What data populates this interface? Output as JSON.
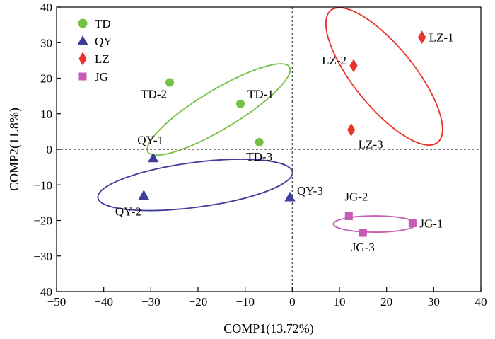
{
  "chart_data": {
    "type": "scatter",
    "xlabel": "COMP1(13.72%)",
    "ylabel": "COMP2(11.8%)",
    "xlim": [
      -50,
      40
    ],
    "ylim": [
      -40,
      40
    ],
    "xticks": [
      -50,
      -40,
      -30,
      -20,
      -10,
      0,
      10,
      20,
      30,
      40
    ],
    "yticks": [
      -40,
      -30,
      -20,
      -10,
      0,
      10,
      20,
      30,
      40
    ],
    "reference_lines": {
      "x": 0,
      "y": 0,
      "style": "dotted"
    },
    "legend": {
      "placement": "top-left"
    },
    "series": [
      {
        "name": "TD",
        "marker": "circle",
        "color": "#76c043",
        "points": [
          {
            "label": "TD-1",
            "x": -11,
            "y": 12.8
          },
          {
            "label": "TD-2",
            "x": -26,
            "y": 18.8
          },
          {
            "label": "TD-3",
            "x": -7,
            "y": 2
          }
        ],
        "ellipse": {
          "cx": -15.6,
          "cy": 11.2,
          "rx": 17.5,
          "ry": 5.5,
          "angle_deg": -31
        }
      },
      {
        "name": "QY",
        "marker": "triangle",
        "color": "#3f3d99",
        "points": [
          {
            "label": "QY-1",
            "x": -29.5,
            "y": -2.5
          },
          {
            "label": "QY-2",
            "x": -31.5,
            "y": -13
          },
          {
            "label": "QY-3",
            "x": -0.5,
            "y": -13.5
          }
        ],
        "ellipse": {
          "cx": -20.6,
          "cy": -10,
          "rx": 20.8,
          "ry": 6.3,
          "angle_deg": -7.5
        }
      },
      {
        "name": "LZ",
        "marker": "diamond",
        "color": "#e8322a",
        "points": [
          {
            "label": "LZ-1",
            "x": 27.5,
            "y": 31.5
          },
          {
            "label": "LZ-2",
            "x": 13,
            "y": 23.5
          },
          {
            "label": "LZ-3",
            "x": 12.5,
            "y": 5.5
          }
        ],
        "ellipse": {
          "cx": 19.5,
          "cy": 20.5,
          "rx": 18,
          "ry": 8.5,
          "angle_deg": 51
        }
      },
      {
        "name": "JG",
        "marker": "square",
        "color": "#c75bb4",
        "points": [
          {
            "label": "JG-1",
            "x": 25.5,
            "y": -20.8
          },
          {
            "label": "JG-2",
            "x": 12,
            "y": -18.8
          },
          {
            "label": "JG-3",
            "x": 15,
            "y": -23.5
          }
        ],
        "ellipse": {
          "cx": 17.5,
          "cy": -21,
          "rx": 8.8,
          "ry": 2.3,
          "angle_deg": 0
        }
      }
    ]
  }
}
